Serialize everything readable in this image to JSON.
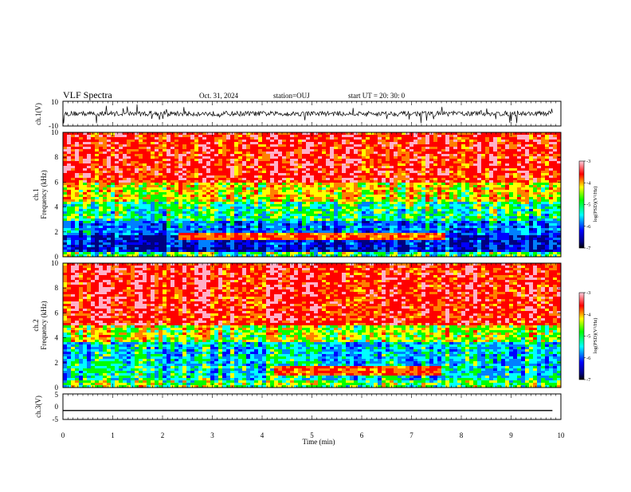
{
  "header": {
    "title": "VLF Spectra",
    "date": "Oct. 31, 2024",
    "station": "station=OUJ",
    "start_ut": "start  UT  =   20: 30: 0"
  },
  "chart_data": [
    {
      "type": "line",
      "name": "ch1-waveform",
      "ylabel": "ch.1(V)",
      "ylim": [
        -10,
        10
      ],
      "yticks": [
        "10",
        "-10"
      ],
      "x_range_min": [
        0,
        9.83
      ],
      "typical_level_v": [
        -2,
        2
      ]
    },
    {
      "type": "heatmap",
      "name": "ch1-spectrogram",
      "ylabel_top": "ch.1",
      "ylabel": "Frequency (kHz)",
      "ylim": [
        0,
        10
      ],
      "yticks": [
        "0",
        "2",
        "4",
        "6",
        "8",
        "10"
      ],
      "xlim": [
        0,
        10
      ],
      "colorbar": {
        "label": "log(PSD)(V²/Hz)",
        "range": [
          -7,
          -3
        ],
        "ticks": [
          "-3",
          "-4",
          "-5",
          "-6",
          "-7"
        ]
      }
    },
    {
      "type": "heatmap",
      "name": "ch2-spectrogram",
      "ylabel_top": "ch.2",
      "ylabel": "Frequency (kHz)",
      "ylim": [
        0,
        10
      ],
      "yticks": [
        "0",
        "2",
        "4",
        "6",
        "8",
        "10"
      ],
      "xlim": [
        0,
        10
      ],
      "colorbar": {
        "label": "log(PSD)(V²/Hz)",
        "range": [
          -7,
          -3
        ],
        "ticks": [
          "-3",
          "-4",
          "-5",
          "-6",
          "-7"
        ]
      }
    },
    {
      "type": "line",
      "name": "ch3-waveform",
      "ylabel": "ch.3(V)",
      "ylim": [
        -5,
        5
      ],
      "yticks": [
        "5",
        "0",
        "-5"
      ],
      "constant_value_v": -1.5,
      "x_range_min": [
        0,
        9.83
      ]
    }
  ],
  "xaxis": {
    "label": "Time (min)",
    "ticks": [
      "0",
      "1",
      "2",
      "3",
      "4",
      "5",
      "6",
      "7",
      "8",
      "9",
      "10"
    ],
    "xlim": [
      0,
      10
    ]
  },
  "colors": {
    "high": "#ff0000",
    "mid": "#ffff00",
    "low": "#00ff00",
    "lower": "#00ffff",
    "lowest": "#0000ff",
    "floor": "#000080"
  }
}
